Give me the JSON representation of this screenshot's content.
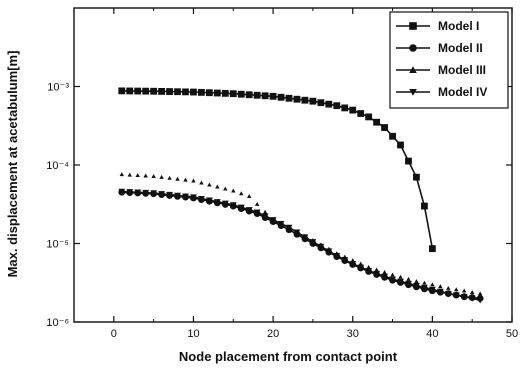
{
  "chart_data": {
    "type": "line",
    "title": "",
    "xlabel": "Node placement from contact point",
    "ylabel": "Max. displacement at acetabulum[m]",
    "xlim": [
      -5,
      50
    ],
    "ylim_log": [
      1e-06,
      0.01
    ],
    "y_scale": "log",
    "grid": false,
    "legend_position": "top-right",
    "x_ticks": [
      0,
      10,
      20,
      30,
      40,
      50
    ],
    "x_tick_labels": [
      "0",
      "10",
      "20",
      "30",
      "40",
      "50"
    ],
    "y_ticks": [
      1e-06,
      1e-05,
      0.0001,
      0.001
    ],
    "y_tick_labels": [
      "10⁻⁶",
      "10⁻⁵",
      "10⁻⁴",
      "10⁻³"
    ],
    "series": [
      {
        "name": "Model I",
        "marker": "square",
        "points": [
          [
            1,
            0.00088
          ],
          [
            5,
            0.00087
          ],
          [
            10,
            0.00085
          ],
          [
            15,
            0.00081
          ],
          [
            20,
            0.00075
          ],
          [
            25,
            0.00065
          ],
          [
            28,
            0.00057
          ],
          [
            30,
            0.0005
          ],
          [
            32,
            0.00041
          ],
          [
            34,
            0.0003
          ],
          [
            36,
            0.00018
          ],
          [
            38,
            7e-05
          ],
          [
            39,
            3e-05
          ],
          [
            40,
            8.6e-06
          ]
        ]
      },
      {
        "name": "Model II",
        "marker": "circle",
        "points": [
          [
            1,
            4.5e-05
          ],
          [
            5,
            4.3e-05
          ],
          [
            10,
            3.8e-05
          ],
          [
            15,
            3e-05
          ],
          [
            18,
            2.4e-05
          ],
          [
            20,
            1.9e-05
          ],
          [
            22,
            1.5e-05
          ],
          [
            25,
            1e-05
          ],
          [
            28,
            6.8e-06
          ],
          [
            30,
            5.4e-06
          ],
          [
            32,
            4.4e-06
          ],
          [
            35,
            3.4e-06
          ],
          [
            38,
            2.8e-06
          ],
          [
            40,
            2.5e-06
          ],
          [
            42,
            2.3e-06
          ],
          [
            44,
            2.1e-06
          ],
          [
            46,
            2e-06
          ]
        ]
      },
      {
        "name": "Model III",
        "marker": "triangle-up",
        "points": [
          [
            1,
            7.6e-05
          ],
          [
            5,
            7.2e-05
          ],
          [
            10,
            6.3e-05
          ],
          [
            15,
            4.7e-05
          ],
          [
            17,
            4e-05
          ],
          [
            20,
            2e-05
          ],
          [
            22,
            1.6e-05
          ],
          [
            25,
            1.1e-05
          ],
          [
            28,
            7.5e-06
          ],
          [
            30,
            6.1e-06
          ],
          [
            32,
            5e-06
          ],
          [
            35,
            4e-06
          ],
          [
            38,
            3.3e-06
          ],
          [
            40,
            3e-06
          ],
          [
            42,
            2.7e-06
          ],
          [
            44,
            2.5e-06
          ],
          [
            46,
            2.3e-06
          ]
        ]
      },
      {
        "name": "Model IV",
        "marker": "triangle-down",
        "points": [
          [
            1,
            4.6e-05
          ],
          [
            5,
            4.4e-05
          ],
          [
            10,
            3.9e-05
          ],
          [
            15,
            3.1e-05
          ],
          [
            18,
            2.5e-05
          ],
          [
            20,
            2e-05
          ],
          [
            22,
            1.6e-05
          ],
          [
            25,
            1.05e-05
          ],
          [
            28,
            7e-06
          ],
          [
            30,
            5.5e-06
          ],
          [
            32,
            4.5e-06
          ],
          [
            35,
            3.5e-06
          ],
          [
            38,
            2.9e-06
          ],
          [
            40,
            2.6e-06
          ],
          [
            42,
            2.3e-06
          ],
          [
            44,
            2.1e-06
          ],
          [
            46,
            1.9e-06
          ]
        ]
      }
    ]
  }
}
